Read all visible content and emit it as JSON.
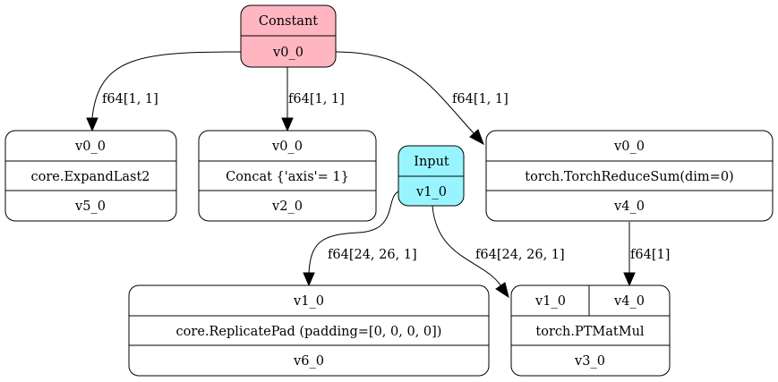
{
  "colors": {
    "constant_fill": "#ffb6c1",
    "input_fill": "#98f5ff",
    "node_fill": "#ffffff",
    "stroke": "#000000"
  },
  "nodes": {
    "constant": {
      "title": "Constant",
      "output": "v0_0"
    },
    "input": {
      "title": "Input",
      "output": "v1_0"
    },
    "expand_last": {
      "input": "v0_0",
      "op": "core.ExpandLast2",
      "output": "v5_0"
    },
    "concat": {
      "input": "v0_0",
      "op": "Concat {'axis'= 1}",
      "output": "v2_0"
    },
    "reduce_sum": {
      "input": "v0_0",
      "op": "torch.TorchReduceSum(dim=0)",
      "output": "v4_0"
    },
    "replicate_pad": {
      "input": "v1_0",
      "op": "core.ReplicatePad (padding=[0, 0, 0, 0])",
      "output": "v6_0"
    },
    "matmul": {
      "input_a": "v1_0",
      "input_b": "v4_0",
      "op": "torch.PTMatMul",
      "output": "v3_0"
    }
  },
  "edges": {
    "const_to_expand": "f64[1, 1]",
    "const_to_concat": "f64[1, 1]",
    "const_to_reduce": "f64[1, 1]",
    "input_to_pad": "f64[24, 26, 1]",
    "input_to_matmul": "f64[24, 26, 1]",
    "reduce_to_matmul": "f64[1]"
  }
}
